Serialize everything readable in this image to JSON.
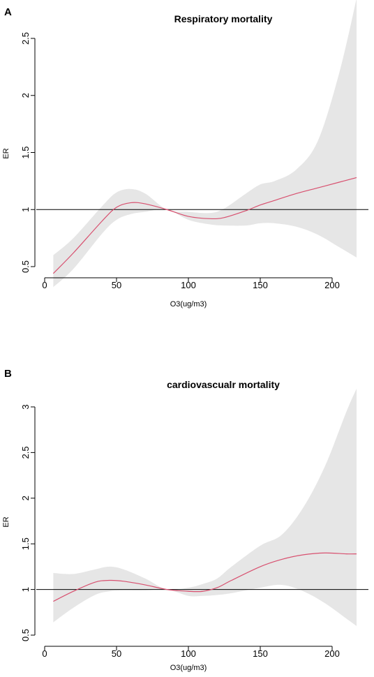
{
  "chart_data": [
    {
      "type": "line",
      "panel_label": "A",
      "title": "Respiratory mortality",
      "xlabel": "O3(ug/m3)",
      "ylabel": "ER",
      "xlim": [
        0,
        220
      ],
      "ylim": [
        0.3,
        2.85
      ],
      "x_ticks": [
        0,
        50,
        100,
        150,
        200
      ],
      "y_ticks": [
        0.5,
        1.0,
        1.5,
        2.0,
        2.5
      ],
      "reference_line": 1.0,
      "grid": false,
      "legend": "none",
      "colors": {
        "line": "#d8506f",
        "band": "#e6e6e6",
        "reference": "#000000"
      },
      "series": [
        {
          "x": [
            6,
            20,
            40,
            50,
            60,
            70,
            85,
            100,
            115,
            125,
            140,
            150,
            160,
            175,
            190,
            205,
            217
          ],
          "y": [
            0.44,
            0.62,
            0.9,
            1.02,
            1.06,
            1.05,
            1.0,
            0.94,
            0.92,
            0.93,
            0.99,
            1.04,
            1.08,
            1.14,
            1.19,
            1.24,
            1.28
          ]
        },
        {
          "x": [
            6,
            20,
            40,
            50,
            60,
            70,
            85,
            100,
            115,
            125,
            140,
            150,
            160,
            175,
            190,
            205,
            217
          ],
          "lower": [
            0.32,
            0.48,
            0.79,
            0.91,
            0.96,
            0.98,
            1.0,
            0.91,
            0.87,
            0.86,
            0.86,
            0.88,
            0.88,
            0.85,
            0.78,
            0.67,
            0.58
          ],
          "upper": [
            0.6,
            0.75,
            1.03,
            1.15,
            1.18,
            1.14,
            1.0,
            0.98,
            0.97,
            1.01,
            1.14,
            1.22,
            1.25,
            1.35,
            1.6,
            2.2,
            2.85
          ]
        }
      ]
    },
    {
      "type": "line",
      "panel_label": "B",
      "title": "cardiovascualr mortality",
      "xlabel": "O3(ug/m3)",
      "ylabel": "ER",
      "xlim": [
        0,
        220
      ],
      "ylim": [
        0.5,
        3.22
      ],
      "x_ticks": [
        0,
        50,
        100,
        150,
        200
      ],
      "y_ticks": [
        0.5,
        1.0,
        1.5,
        2.0,
        2.5,
        3.0
      ],
      "reference_line": 1.0,
      "grid": false,
      "legend": "none",
      "colors": {
        "line": "#d8506f",
        "band": "#e6e6e6",
        "reference": "#000000"
      },
      "series": [
        {
          "x": [
            6,
            20,
            35,
            45,
            55,
            70,
            85,
            100,
            110,
            120,
            130,
            150,
            165,
            180,
            195,
            210,
            217
          ],
          "y": [
            0.87,
            0.98,
            1.08,
            1.1,
            1.09,
            1.05,
            1.0,
            0.98,
            0.98,
            1.02,
            1.1,
            1.25,
            1.33,
            1.38,
            1.4,
            1.39,
            1.39
          ]
        },
        {
          "x": [
            6,
            20,
            35,
            45,
            55,
            70,
            85,
            100,
            110,
            120,
            130,
            150,
            165,
            180,
            195,
            210,
            217
          ],
          "lower": [
            0.64,
            0.8,
            0.94,
            0.98,
            0.99,
            0.99,
            1.0,
            0.93,
            0.93,
            0.94,
            0.96,
            1.02,
            1.05,
            0.98,
            0.85,
            0.68,
            0.6
          ],
          "upper": [
            1.18,
            1.17,
            1.22,
            1.25,
            1.22,
            1.12,
            1.0,
            1.02,
            1.06,
            1.12,
            1.25,
            1.48,
            1.6,
            1.9,
            2.35,
            2.95,
            3.2
          ]
        }
      ]
    }
  ]
}
